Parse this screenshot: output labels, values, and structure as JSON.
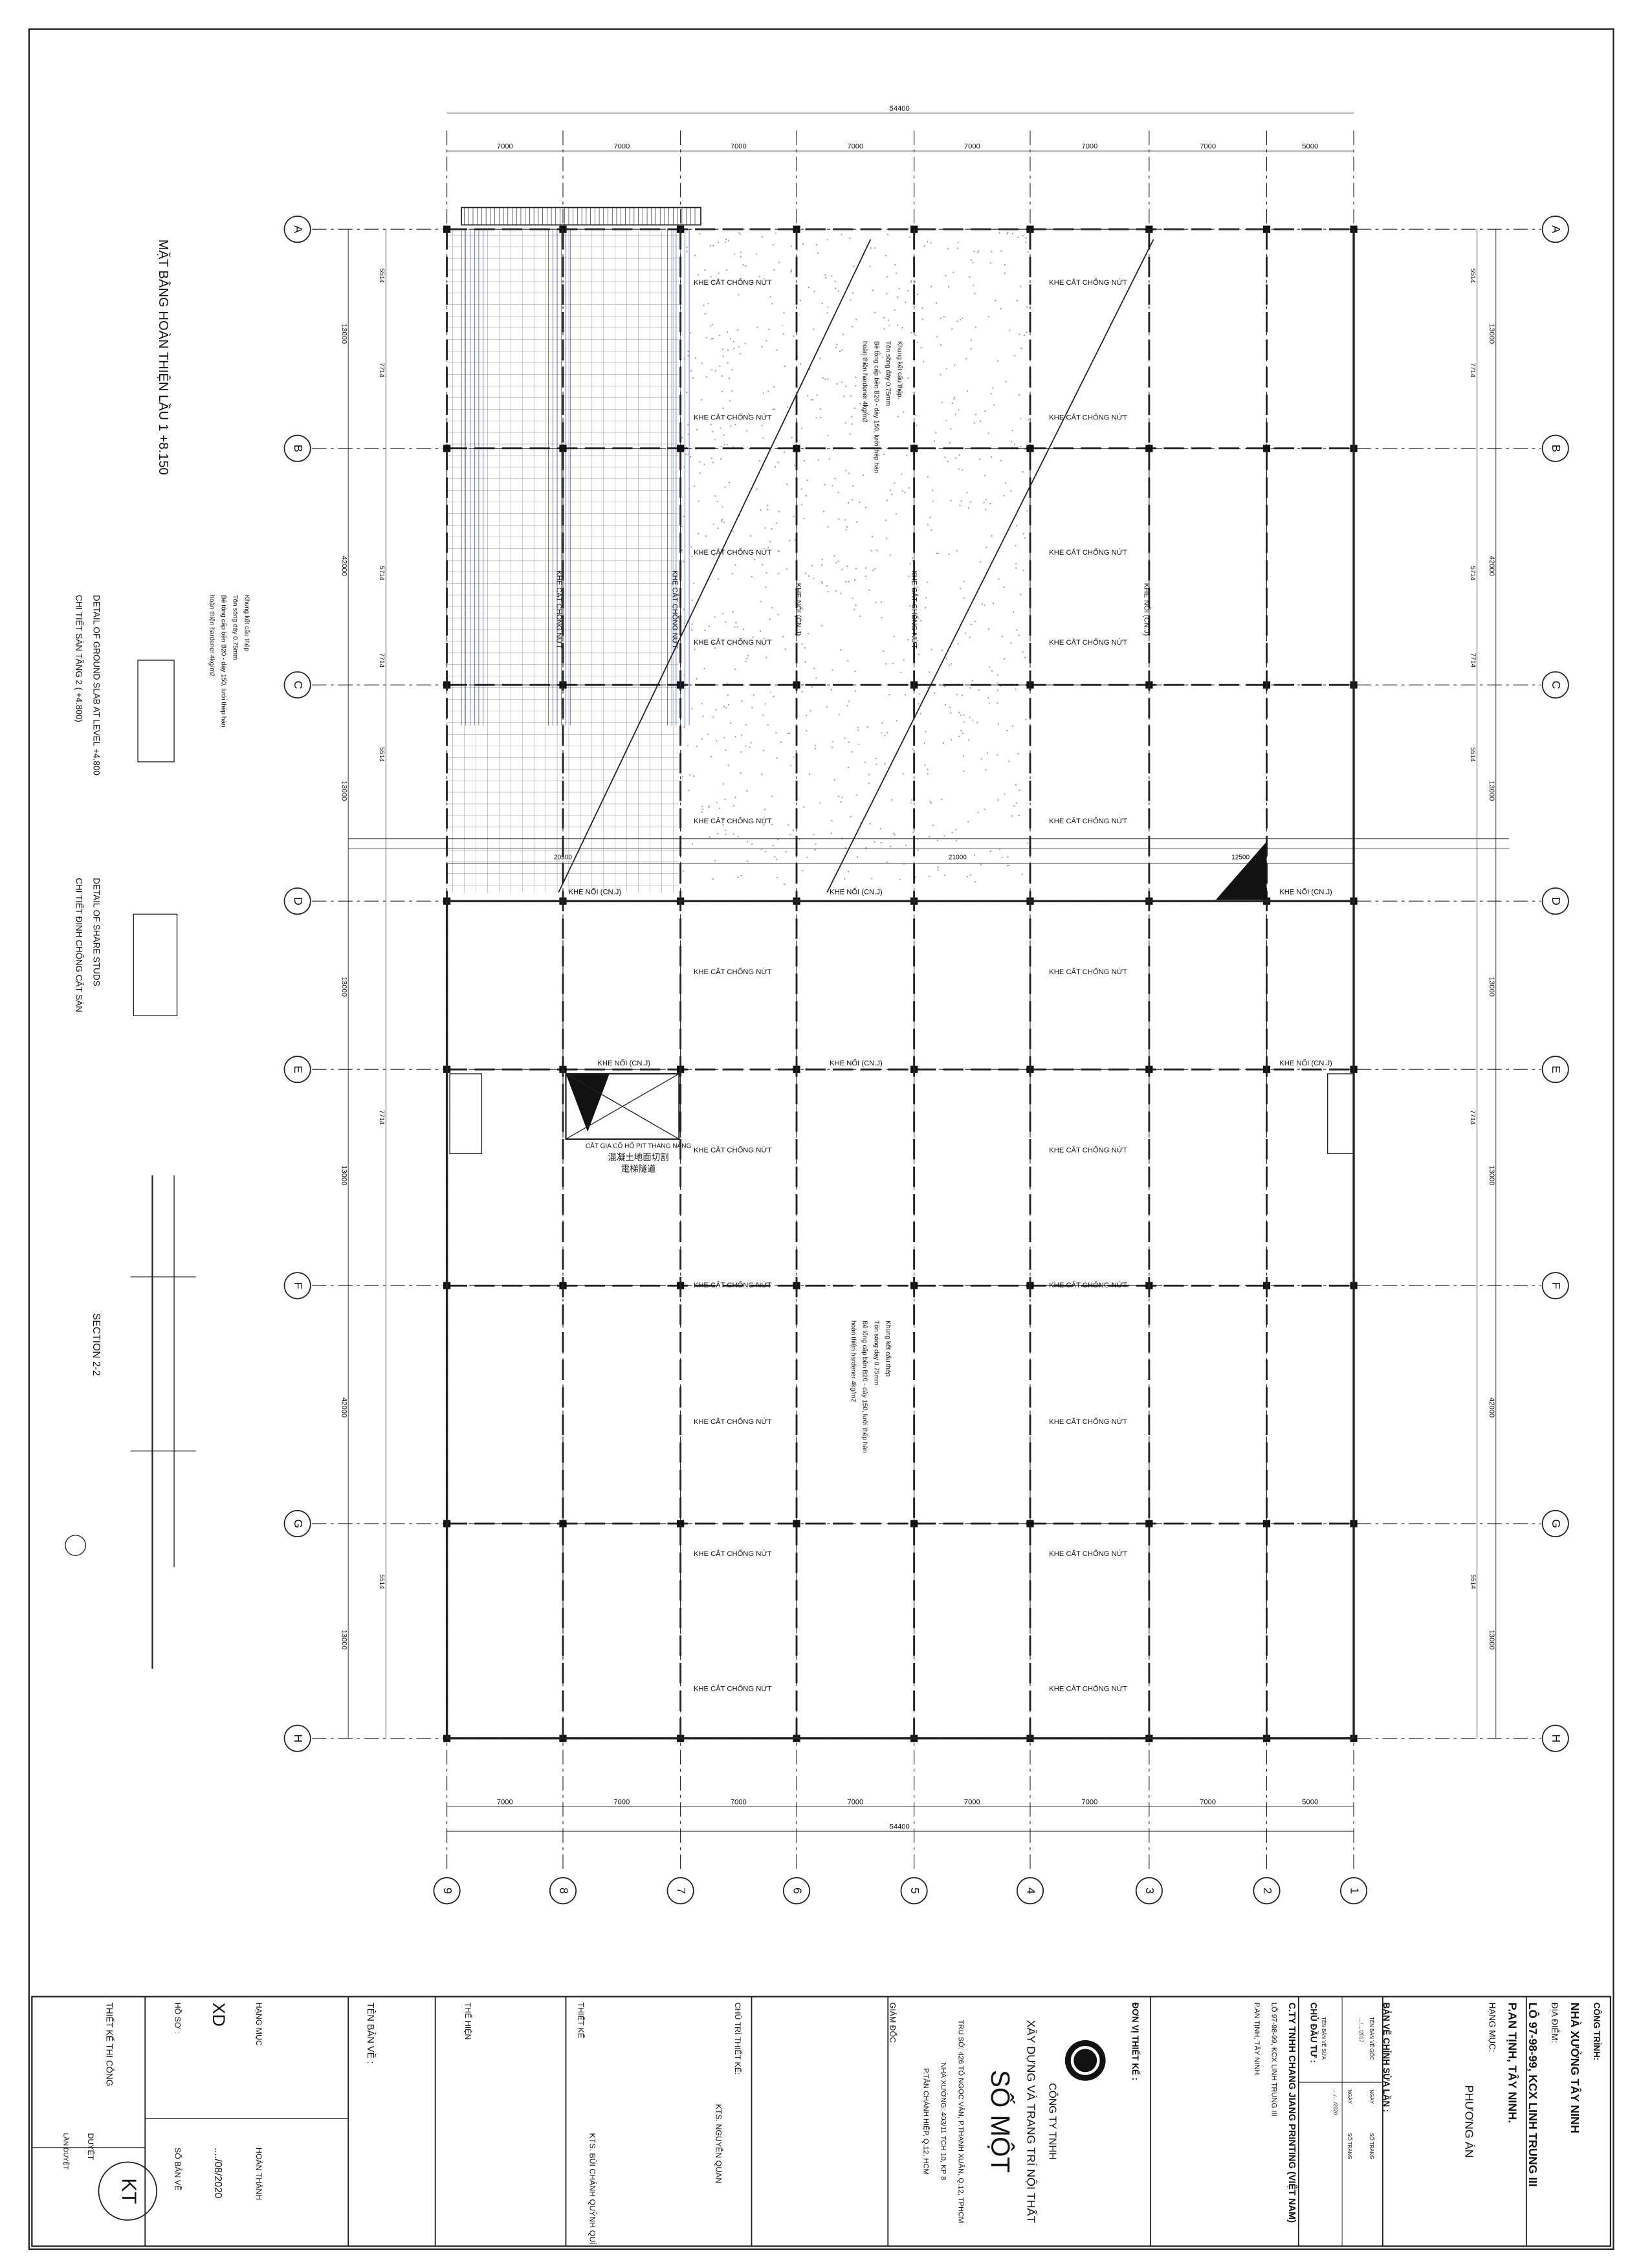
{
  "drawing": {
    "title": "MẶT BẰNG HOÀN THIỆN LẦU 1 +8.150"
  },
  "grid": {
    "rows": [
      "A",
      "B",
      "C",
      "D",
      "E",
      "F",
      "G",
      "H"
    ],
    "columns": [
      "9",
      "8",
      "7",
      "6",
      "5",
      "4",
      "3",
      "2",
      "1"
    ]
  },
  "dimensions": {
    "overall": "54400",
    "spans": [
      "7000",
      "7000",
      "7000",
      "7000",
      "7000",
      "7000",
      "7000",
      "5000"
    ],
    "left_outer": [
      "13000",
      "42000",
      "13000",
      "13000",
      "13000",
      "42000",
      "13000"
    ],
    "left_inner": [
      "5514",
      "7714",
      "5714",
      "7714",
      "5514",
      "7714",
      "5514"
    ],
    "segments": [
      "20500",
      "21000",
      "12500"
    ]
  },
  "annotations": [
    "KHE CẮT CHỐNG NỨT",
    "KHE NỐI (CN.J)"
  ],
  "slab_notes": [
    "Khung kết cấu thép",
    "Tôn sóng dày 0.75mm",
    "Bê tông cấp bền B20 - dày 150, lưới thép hàn",
    "hoàn thiện hardener 4kg/m2"
  ],
  "pit_notes": [
    "CẮT GIA CỐ HỐ PIT THANG NÂNG",
    "混凝土地面切割",
    "電梯隧道"
  ],
  "details": [
    "DETAIL OF GROUND SLAB AT LEVEL +4.800",
    "CHI TIẾT SÀN TẦNG 2 ( +4.800)",
    "DETAIL OF SHARE STUDS",
    "CHI TIẾT ĐINH CHỐNG CẮT SÀN",
    "SECTION 2-2"
  ],
  "title_block": {
    "project_label": "CÔNG TRÌNH:",
    "project": "NHÀ XƯỞNG TÂY NINH",
    "location_label": "ĐỊA ĐIỂM:",
    "location_1": "LÔ 97-98-99, KCX LINH TRUNG III",
    "location_2": "P.AN TỊNH, TÂY NINH.",
    "item_label": "HẠNG MỤC:",
    "item": "PHƯƠNG ÁN",
    "revision_label": "BẢN VẼ CHỈNH SỬA LẦN :",
    "revision_table": [
      "TÊN BẢN VẼ GỐC",
      "TÊN BẢN VẼ SỬA",
      "NGÀY",
      "SỐ TRANG",
      "NGÀY",
      "SỐ TRANG",
      "..../..../2017",
      "..../..../2020"
    ],
    "owner_label": "CHỦ ĐẦU TƯ :",
    "owner": "C.TY TNHH CHANG JIANG PRINTING (VIỆT NAM)",
    "owner_addr_1": "LÔ 97-98-99, KCX LINH TRUNG III",
    "owner_addr_2": "P.AN TỊNH, TÂY NINH.",
    "designer_label": "ĐƠN VỊ THIẾT KẾ :",
    "company_1": "CÔNG TY TNHH",
    "company_2": "XÂY DỰNG VÀ TRANG TRÍ NỘI THẤT",
    "company_3": "SỐ MỘT",
    "addr_1": "TRỤ SỞ: 426 TÔ NGỌC VÂN, P.THẠNH XUÂN, Q.12, TPHCM",
    "addr_2": "NHÀ XƯỞNG: 403/11 TCH 10, KP 8",
    "addr_3": "P.TÂN CHÁNH HIỆP, Q.12, HCM",
    "director": "GIÁM ĐỐC",
    "chief_label": "CHỦ TRÌ THIẾT KẾ:",
    "chief": "KTS. NGUYỄN QUAN",
    "design_label": "THIẾT KẾ",
    "design": "KTS. BÙI CHÁNH QUỲNH QUÍ",
    "drawn_label": "THỂ HIỆN",
    "sheet_name_label": "TÊN BẢN VẼ :",
    "category_label": "HẠNG MỤC",
    "category": "XD",
    "done_label": "HOÀN THÀNH",
    "done": "..../08/2020",
    "file_label": "HỒ SƠ :",
    "sheet_no_label": "SỐ BẢN VẼ",
    "phase": "THIẾT KẾ THI CÔNG",
    "approve": "DUYỆT",
    "approve_times": "LẦN DUYỆT",
    "stamp": "KT"
  }
}
